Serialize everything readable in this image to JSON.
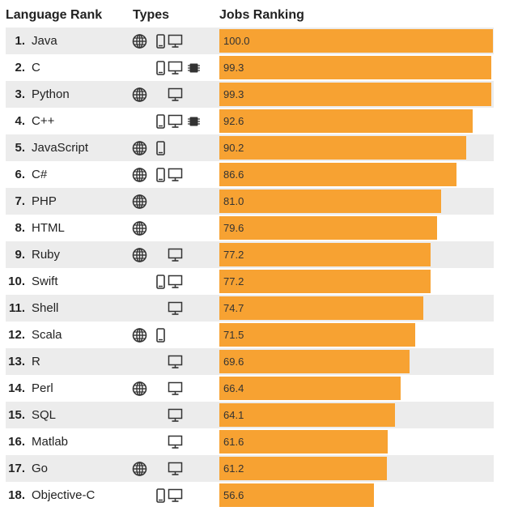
{
  "header": {
    "language_rank": "Language Rank",
    "types": "Types",
    "jobs_ranking": "Jobs Ranking"
  },
  "colors": {
    "bar": "#f7a232",
    "row_alt": "#ececec",
    "icon": "#333333"
  },
  "icons": {
    "web": "globe-icon",
    "mobile": "mobile-phone-icon",
    "desktop": "desktop-monitor-icon",
    "embedded": "chip-icon"
  },
  "chart_data": {
    "type": "bar",
    "orientation": "horizontal",
    "title": "",
    "xlim": [
      0,
      100
    ],
    "rows": [
      {
        "rank": "1.",
        "name": "Java",
        "types": [
          "web",
          "mobile",
          "desktop"
        ],
        "value": 100.0,
        "label": "100.0"
      },
      {
        "rank": "2.",
        "name": "C",
        "types": [
          "mobile",
          "desktop",
          "embedded"
        ],
        "value": 99.3,
        "label": "99.3"
      },
      {
        "rank": "3.",
        "name": "Python",
        "types": [
          "web",
          "desktop"
        ],
        "value": 99.3,
        "label": "99.3"
      },
      {
        "rank": "4.",
        "name": "C++",
        "types": [
          "mobile",
          "desktop",
          "embedded"
        ],
        "value": 92.6,
        "label": "92.6"
      },
      {
        "rank": "5.",
        "name": "JavaScript",
        "types": [
          "web",
          "mobile"
        ],
        "value": 90.2,
        "label": "90.2"
      },
      {
        "rank": "6.",
        "name": "C#",
        "types": [
          "web",
          "mobile",
          "desktop"
        ],
        "value": 86.6,
        "label": "86.6"
      },
      {
        "rank": "7.",
        "name": "PHP",
        "types": [
          "web"
        ],
        "value": 81.0,
        "label": "81.0"
      },
      {
        "rank": "8.",
        "name": "HTML",
        "types": [
          "web"
        ],
        "value": 79.6,
        "label": "79.6"
      },
      {
        "rank": "9.",
        "name": "Ruby",
        "types": [
          "web",
          "desktop"
        ],
        "value": 77.2,
        "label": "77.2"
      },
      {
        "rank": "10.",
        "name": "Swift",
        "types": [
          "mobile",
          "desktop"
        ],
        "value": 77.2,
        "label": "77.2"
      },
      {
        "rank": "11.",
        "name": "Shell",
        "types": [
          "desktop"
        ],
        "value": 74.7,
        "label": "74.7"
      },
      {
        "rank": "12.",
        "name": "Scala",
        "types": [
          "web",
          "mobile"
        ],
        "value": 71.5,
        "label": "71.5"
      },
      {
        "rank": "13.",
        "name": "R",
        "types": [
          "desktop"
        ],
        "value": 69.6,
        "label": "69.6"
      },
      {
        "rank": "14.",
        "name": "Perl",
        "types": [
          "web",
          "desktop"
        ],
        "value": 66.4,
        "label": "66.4"
      },
      {
        "rank": "15.",
        "name": "SQL",
        "types": [
          "desktop"
        ],
        "value": 64.1,
        "label": "64.1"
      },
      {
        "rank": "16.",
        "name": "Matlab",
        "types": [
          "desktop"
        ],
        "value": 61.6,
        "label": "61.6"
      },
      {
        "rank": "17.",
        "name": "Go",
        "types": [
          "web",
          "desktop"
        ],
        "value": 61.2,
        "label": "61.2"
      },
      {
        "rank": "18.",
        "name": "Objective-C",
        "types": [
          "mobile",
          "desktop"
        ],
        "value": 56.6,
        "label": "56.6"
      }
    ]
  }
}
